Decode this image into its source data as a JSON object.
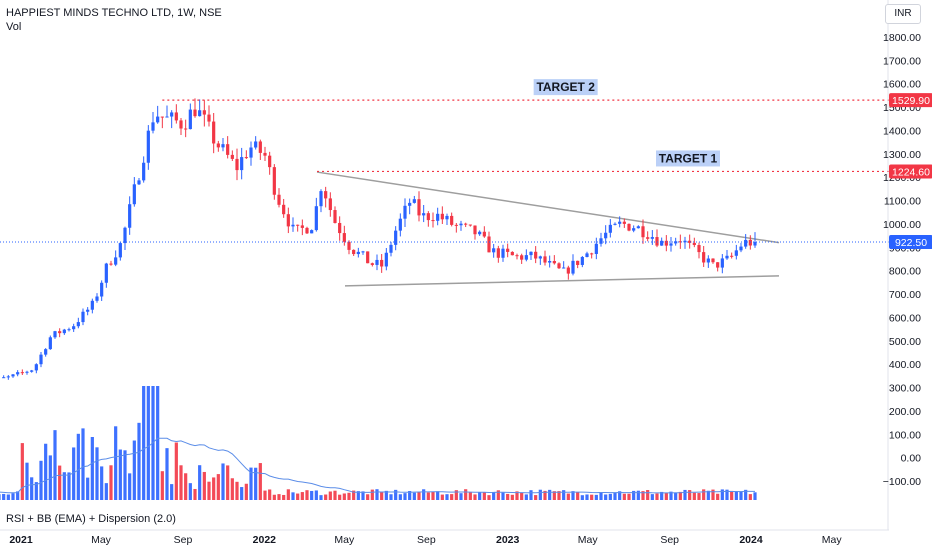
{
  "header": {
    "title": "HAPPIEST MINDS TECHNO LTD, 1W, NSE",
    "volume_label": "Vol",
    "currency": "INR"
  },
  "indicator": {
    "label": "RSI + BB (EMA) + Dispersion (2.0)"
  },
  "colors": {
    "up": "#2962ff",
    "down": "#f23645",
    "target_line": "#f23645",
    "target_box": "#bbd0f7",
    "trendline": "#9e9e9e",
    "last_price_box": "#2962ff",
    "volume_ma": "#5b8de8"
  },
  "chart_data": {
    "type": "candlestick",
    "y_axis": {
      "range": [
        -150,
        1860
      ],
      "ticks": [
        "1800.00",
        "1700.00",
        "1600.00",
        "1500.00",
        "1400.00",
        "1300.00",
        "1200.00",
        "1100.00",
        "1000.00",
        "900.00",
        "800.00",
        "700.00",
        "600.00",
        "500.00",
        "400.00",
        "300.00",
        "200.00",
        "100.00",
        "0.00",
        "−100.00"
      ]
    },
    "x_axis": {
      "labels": [
        "2021",
        "May",
        "Sep",
        "2022",
        "May",
        "Sep",
        "2023",
        "May",
        "Sep",
        "2024",
        "May"
      ],
      "bold_labels": [
        "2021",
        "2022",
        "2023",
        "2024"
      ]
    },
    "annotations": {
      "target_1": {
        "label": "TARGET 1",
        "price": 1224.6,
        "price_label": "1224.60"
      },
      "target_2": {
        "label": "TARGET 2",
        "price": 1529.9,
        "price_label": "1529.90"
      },
      "last_price": {
        "price": 922.5,
        "price_label": "922.50"
      }
    },
    "pattern": {
      "type": "descending triangle",
      "upper_trendline": {
        "from": {
          "date": "2022-03-21",
          "price": 1222
        },
        "to": {
          "date": "2024-02-12",
          "price": 920
        }
      },
      "lower_trendline": {
        "from": {
          "date": "2022-05-02",
          "price": 735
        },
        "to": {
          "date": "2024-02-12",
          "price": 778
        }
      }
    },
    "price_anchors": [
      [
        "2020-11-01",
        320
      ],
      [
        "2020-12-15",
        345
      ],
      [
        "2021-01-20",
        380
      ],
      [
        "2021-02-15",
        520
      ],
      [
        "2021-03-20",
        565
      ],
      [
        "2021-04-20",
        660
      ],
      [
        "2021-05-10",
        820
      ],
      [
        "2021-06-01",
        920
      ],
      [
        "2021-06-25",
        1200
      ],
      [
        "2021-07-20",
        1480
      ],
      [
        "2021-08-05",
        1450
      ],
      [
        "2021-09-01",
        1430
      ],
      [
        "2021-09-20",
        1500
      ],
      [
        "2021-10-20",
        1350
      ],
      [
        "2021-11-20",
        1240
      ],
      [
        "2021-12-10",
        1330
      ],
      [
        "2022-01-01",
        1300
      ],
      [
        "2022-01-20",
        1120
      ],
      [
        "2022-02-15",
        960
      ],
      [
        "2022-03-15",
        1000
      ],
      [
        "2022-03-28",
        1180
      ],
      [
        "2022-04-15",
        1020
      ],
      [
        "2022-05-10",
        900
      ],
      [
        "2022-06-10",
        830
      ],
      [
        "2022-06-28",
        820
      ],
      [
        "2022-07-15",
        960
      ],
      [
        "2022-08-08",
        1100
      ],
      [
        "2022-08-25",
        1030
      ],
      [
        "2022-09-15",
        1040
      ],
      [
        "2022-10-15",
        990
      ],
      [
        "2022-11-15",
        960
      ],
      [
        "2022-12-10",
        880
      ],
      [
        "2023-01-10",
        860
      ],
      [
        "2023-02-10",
        860
      ],
      [
        "2023-03-01",
        830
      ],
      [
        "2023-03-25",
        790
      ],
      [
        "2023-04-25",
        860
      ],
      [
        "2023-05-25",
        950
      ],
      [
        "2023-06-20",
        1000
      ],
      [
        "2023-07-10",
        990
      ],
      [
        "2023-08-01",
        960
      ],
      [
        "2023-08-20",
        920
      ],
      [
        "2023-09-15",
        940
      ],
      [
        "2023-10-10",
        880
      ],
      [
        "2023-11-05",
        820
      ],
      [
        "2023-11-30",
        850
      ],
      [
        "2023-12-20",
        920
      ],
      [
        "2024-01-10",
        922.5
      ]
    ]
  }
}
